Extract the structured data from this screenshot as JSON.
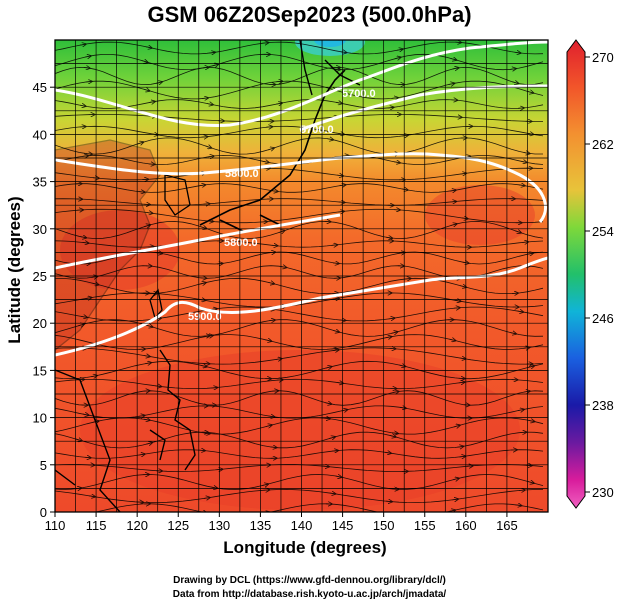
{
  "title": "GSM 06Z20Sep2023 (500.0hPa)",
  "xlabel": "Longitude (degrees)",
  "ylabel": "Latitude  (degrees)",
  "x_ticks": [
    "110",
    "115",
    "120",
    "125",
    "130",
    "135",
    "140",
    "145",
    "150",
    "155",
    "160",
    "165"
  ],
  "y_ticks": [
    "0",
    "5",
    "10",
    "15",
    "20",
    "25",
    "30",
    "35",
    "40",
    "45"
  ],
  "colorbar": {
    "ticks": [
      "270",
      "262",
      "254",
      "246",
      "238",
      "230"
    ],
    "colors": [
      "#e0202e",
      "#f2552a",
      "#f39030",
      "#e8c33a",
      "#7fd83a",
      "#22c06a",
      "#10b4d8",
      "#1a60e0",
      "#1a1aa8",
      "#6a1aa0",
      "#d81c9c",
      "#f060c0"
    ]
  },
  "contours": [
    {
      "label": "5900.0"
    },
    {
      "label": "5800.0"
    },
    {
      "label": "5800.0"
    },
    {
      "label": "5700.0"
    },
    {
      "label": "5700.0"
    }
  ],
  "credits": {
    "line1": "Drawing by DCL (https://www.gfd-dennou.org/library/dcl/)",
    "line2": "Data from http://database.rish.kyoto-u.ac.jp/arch/jmadata/"
  }
}
